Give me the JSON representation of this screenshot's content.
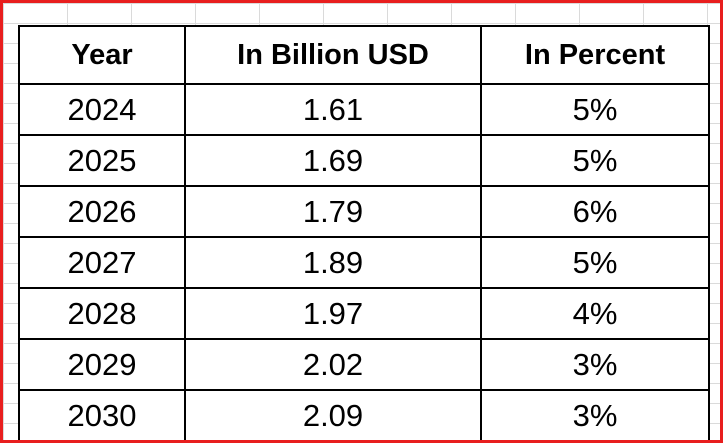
{
  "table": {
    "headers": [
      "Year",
      "In Billion USD",
      "In Percent"
    ],
    "rows": [
      [
        "2024",
        "1.61",
        "5%"
      ],
      [
        "2025",
        "1.69",
        "5%"
      ],
      [
        "2026",
        "1.79",
        "6%"
      ],
      [
        "2027",
        "1.89",
        "5%"
      ],
      [
        "2028",
        "1.97",
        "4%"
      ],
      [
        "2029",
        "2.02",
        "3%"
      ],
      [
        "2030",
        "2.09",
        "3%"
      ]
    ]
  },
  "colors": {
    "frame_border": "#e81e1e",
    "grid_line": "#dadada",
    "table_border": "#000000"
  }
}
